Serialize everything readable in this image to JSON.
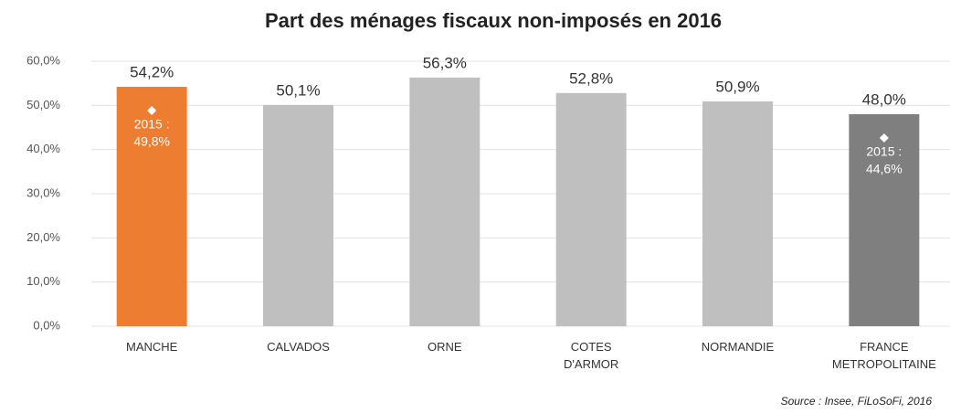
{
  "chart_data": {
    "type": "bar",
    "title": "Part des ménages fiscaux non-imposés en 2016",
    "categories": [
      "MANCHE",
      "CALVADOS",
      "ORNE",
      "COTES D'ARMOR",
      "NORMANDIE",
      "FRANCE METROPOLITAINE"
    ],
    "values": [
      54.2,
      50.1,
      56.3,
      52.8,
      50.9,
      48.0
    ],
    "value_labels": [
      "54,2%",
      "50,1%",
      "56,3%",
      "52,8%",
      "50,9%",
      "48,0%"
    ],
    "colors": [
      "#ed7d31",
      "#bfbfbf",
      "#bfbfbf",
      "#bfbfbf",
      "#bfbfbf",
      "#7f7f7f"
    ],
    "ylim": [
      0,
      60
    ],
    "yticks": [
      {
        "value": 0,
        "label": "0,0%"
      },
      {
        "value": 10,
        "label": "10,0%"
      },
      {
        "value": 20,
        "label": "20,0%"
      },
      {
        "value": 30,
        "label": "30,0%"
      },
      {
        "value": 40,
        "label": "40,0%"
      },
      {
        "value": 50,
        "label": "50,0%"
      },
      {
        "value": 60,
        "label": "60,0%"
      }
    ],
    "grid": true,
    "annotations": [
      {
        "category": "MANCHE",
        "text": [
          "2015 :",
          "49,8%"
        ]
      },
      {
        "category": "FRANCE METROPOLITAINE",
        "text": [
          "2015 :",
          "44,6%"
        ]
      }
    ],
    "source": "Source : Insee, FiLoSoFi, 2016"
  }
}
